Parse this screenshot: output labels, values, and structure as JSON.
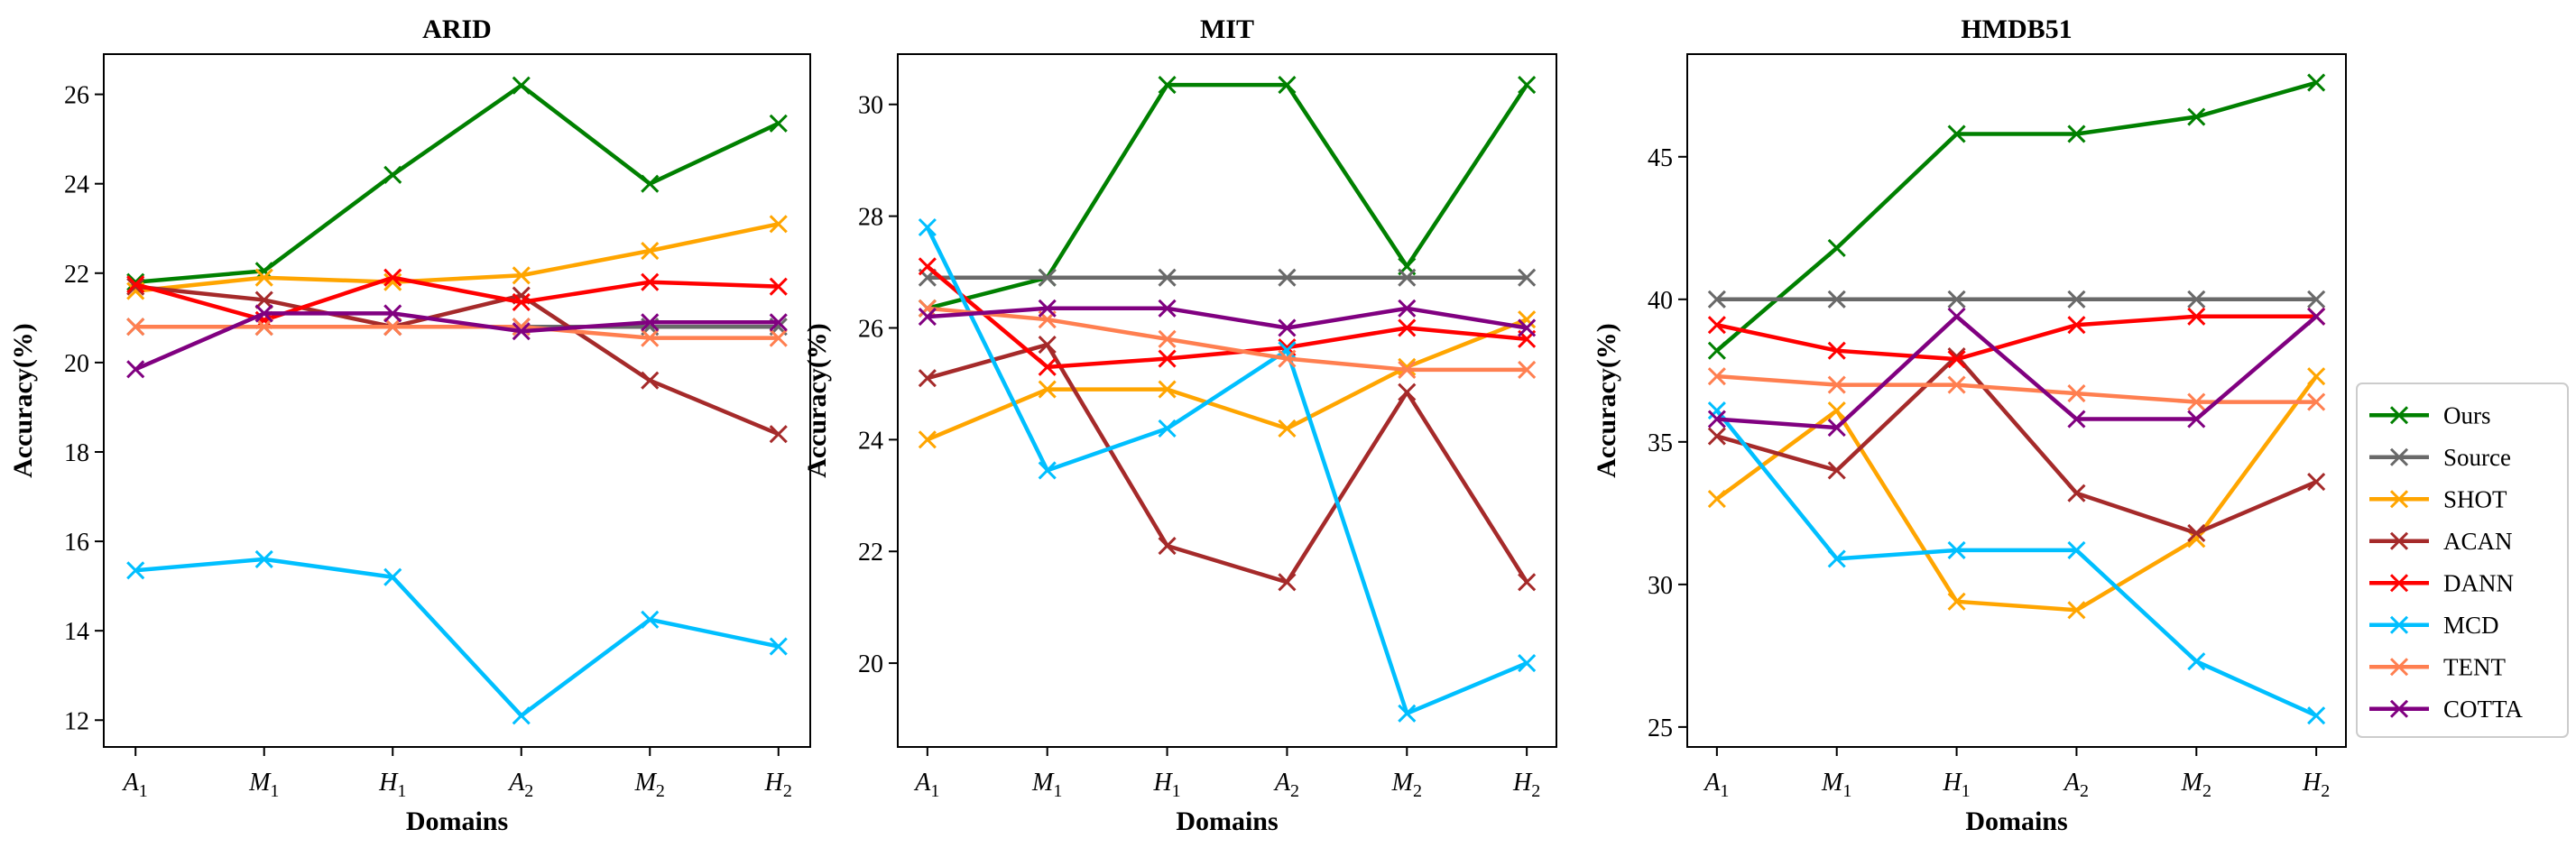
{
  "legend": {
    "entries": [
      "Ours",
      "Source",
      "SHOT",
      "ACAN",
      "DANN",
      "MCD",
      "TENT",
      "COTTA"
    ],
    "colors": [
      "#008000",
      "#696969",
      "#FFA500",
      "#A52A2A",
      "#FF0000",
      "#00BFFF",
      "#FF7F50",
      "#800080"
    ],
    "placement": "center-right",
    "marker": "x"
  },
  "chart_data": [
    {
      "type": "line",
      "title": "ARID",
      "xlabel": "Domains",
      "ylabel": "Accuracy(%)",
      "categories": [
        [
          "A",
          "1"
        ],
        [
          "M",
          "1"
        ],
        [
          "H",
          "1"
        ],
        [
          "A",
          "2"
        ],
        [
          "M",
          "2"
        ],
        [
          "H",
          "2"
        ]
      ],
      "ylim": [
        11.4,
        26.9
      ],
      "yticks": [
        12,
        14,
        16,
        18,
        20,
        22,
        24,
        26
      ],
      "grid": false,
      "series": [
        {
          "name": "Ours",
          "values": [
            21.8,
            22.05,
            24.2,
            26.2,
            24.0,
            25.35
          ]
        },
        {
          "name": "Source",
          "values": [
            20.8,
            20.8,
            20.8,
            20.8,
            20.8,
            20.8
          ]
        },
        {
          "name": "SHOT",
          "values": [
            21.6,
            21.9,
            21.8,
            21.95,
            22.5,
            23.1
          ]
        },
        {
          "name": "ACAN",
          "values": [
            21.7,
            21.4,
            20.8,
            21.5,
            19.6,
            18.4
          ]
        },
        {
          "name": "DANN",
          "values": [
            21.75,
            20.95,
            21.9,
            21.35,
            21.8,
            21.7
          ]
        },
        {
          "name": "MCD",
          "values": [
            15.35,
            15.6,
            15.2,
            12.1,
            14.25,
            13.65
          ]
        },
        {
          "name": "TENT",
          "values": [
            20.8,
            20.8,
            20.8,
            20.8,
            20.55,
            20.55
          ]
        },
        {
          "name": "COTTA",
          "values": [
            19.85,
            21.1,
            21.1,
            20.7,
            20.9,
            20.9
          ]
        }
      ]
    },
    {
      "type": "line",
      "title": "MIT",
      "xlabel": "Domains",
      "ylabel": "Accuracy(%)",
      "categories": [
        [
          "A",
          "1"
        ],
        [
          "M",
          "1"
        ],
        [
          "H",
          "1"
        ],
        [
          "A",
          "2"
        ],
        [
          "M",
          "2"
        ],
        [
          "H",
          "2"
        ]
      ],
      "ylim": [
        18.5,
        30.9
      ],
      "yticks": [
        20,
        22,
        24,
        26,
        28,
        30
      ],
      "grid": false,
      "series": [
        {
          "name": "Ours",
          "values": [
            26.35,
            26.9,
            30.35,
            30.35,
            27.1,
            30.35
          ]
        },
        {
          "name": "Source",
          "values": [
            26.9,
            26.9,
            26.9,
            26.9,
            26.9,
            26.9
          ]
        },
        {
          "name": "SHOT",
          "values": [
            24.0,
            24.9,
            24.9,
            24.2,
            25.3,
            26.15
          ]
        },
        {
          "name": "ACAN",
          "values": [
            25.1,
            25.7,
            22.1,
            21.45,
            24.85,
            21.45
          ]
        },
        {
          "name": "DANN",
          "values": [
            27.1,
            25.3,
            25.45,
            25.65,
            26.0,
            25.8
          ]
        },
        {
          "name": "MCD",
          "values": [
            27.8,
            23.45,
            24.2,
            25.6,
            19.1,
            20.0
          ]
        },
        {
          "name": "TENT",
          "values": [
            26.35,
            26.15,
            25.8,
            25.45,
            25.25,
            25.25
          ]
        },
        {
          "name": "COTTA",
          "values": [
            26.2,
            26.35,
            26.35,
            26.0,
            26.35,
            26.0
          ]
        }
      ]
    },
    {
      "type": "line",
      "title": "HMDB51",
      "xlabel": "Domains",
      "ylabel": "Accuracy(%)",
      "categories": [
        [
          "A",
          "1"
        ],
        [
          "M",
          "1"
        ],
        [
          "H",
          "1"
        ],
        [
          "A",
          "2"
        ],
        [
          "M",
          "2"
        ],
        [
          "H",
          "2"
        ]
      ],
      "ylim": [
        24.3,
        48.6
      ],
      "yticks": [
        25,
        30,
        35,
        40,
        45
      ],
      "grid": false,
      "series": [
        {
          "name": "Ours",
          "values": [
            38.2,
            41.8,
            45.8,
            45.8,
            46.4,
            47.6
          ]
        },
        {
          "name": "Source",
          "values": [
            40.0,
            40.0,
            40.0,
            40.0,
            40.0,
            40.0
          ]
        },
        {
          "name": "SHOT",
          "values": [
            33.0,
            36.1,
            29.4,
            29.1,
            31.6,
            37.3
          ]
        },
        {
          "name": "ACAN",
          "values": [
            35.2,
            34.0,
            38.0,
            33.2,
            31.8,
            33.6
          ]
        },
        {
          "name": "DANN",
          "values": [
            39.1,
            38.2,
            37.9,
            39.1,
            39.4,
            39.4
          ]
        },
        {
          "name": "MCD",
          "values": [
            36.1,
            30.9,
            31.2,
            31.2,
            27.3,
            25.4
          ]
        },
        {
          "name": "TENT",
          "values": [
            37.3,
            37.0,
            37.0,
            36.7,
            36.4,
            36.4
          ]
        },
        {
          "name": "COTTA",
          "values": [
            35.8,
            35.5,
            39.4,
            35.8,
            35.8,
            39.4
          ]
        }
      ]
    }
  ]
}
